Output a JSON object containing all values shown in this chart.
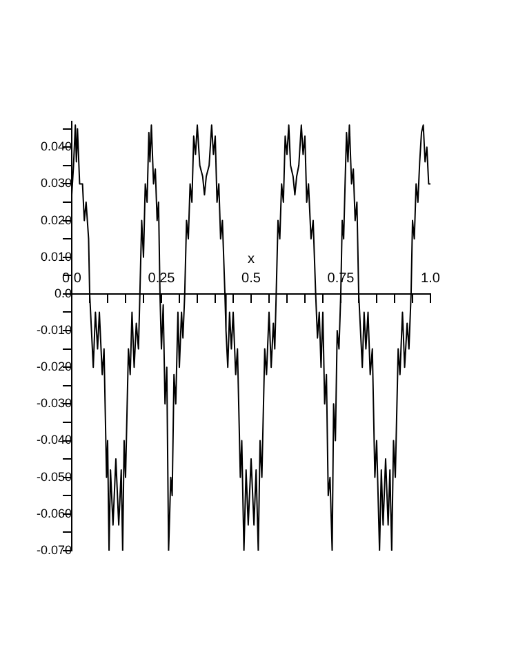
{
  "chart_data": {
    "type": "line",
    "xlabel": "x",
    "color": "#000000",
    "grid": false,
    "legend": false,
    "marker": "none",
    "line_style": "solid",
    "xlim": [
      0,
      1.0
    ],
    "ylim": [
      -0.07,
      0.047
    ],
    "xticks": [
      {
        "value": 0,
        "label": "0.0"
      },
      {
        "value": 0.05,
        "label": null
      },
      {
        "value": 0.1,
        "label": null
      },
      {
        "value": 0.15,
        "label": null
      },
      {
        "value": 0.2,
        "label": null
      },
      0.25,
      {
        "value": 0.3,
        "label": null
      },
      {
        "value": 0.35,
        "label": null
      },
      {
        "value": 0.4,
        "label": null
      },
      {
        "value": 0.45,
        "label": null
      },
      0.5,
      {
        "value": 0.55,
        "label": null
      },
      {
        "value": 0.6,
        "label": null
      },
      {
        "value": 0.65,
        "label": null
      },
      {
        "value": 0.7,
        "label": null
      },
      0.75,
      {
        "value": 0.8,
        "label": null
      },
      {
        "value": 0.85,
        "label": null
      },
      {
        "value": 0.9,
        "label": null
      },
      {
        "value": 0.95,
        "label": null
      },
      {
        "value": 1.0,
        "label": "1.0"
      }
    ],
    "yticks": [
      {
        "value": -0.07,
        "label": "-0.070"
      },
      {
        "value": -0.065,
        "label": null
      },
      {
        "value": -0.06,
        "label": "-0.060"
      },
      {
        "value": -0.055,
        "label": null
      },
      {
        "value": -0.05,
        "label": "-0.050"
      },
      {
        "value": -0.045,
        "label": null
      },
      {
        "value": -0.04,
        "label": "-0.040"
      },
      {
        "value": -0.035,
        "label": null
      },
      {
        "value": -0.03,
        "label": "-0.030"
      },
      {
        "value": -0.025,
        "label": null
      },
      {
        "value": -0.02,
        "label": "-0.020"
      },
      {
        "value": -0.015,
        "label": null
      },
      {
        "value": -0.01,
        "label": "-0.010"
      },
      {
        "value": -0.005,
        "label": null
      },
      {
        "value": 0,
        "label": "0.0"
      },
      {
        "value": 0.005,
        "label": null
      },
      {
        "value": 0.01,
        "label": "0.010"
      },
      {
        "value": 0.015,
        "label": null
      },
      {
        "value": 0.02,
        "label": "0.020"
      },
      {
        "value": 0.025,
        "label": null
      },
      {
        "value": 0.03,
        "label": "0.030"
      },
      {
        "value": 0.035,
        "label": null
      },
      {
        "value": 0.04,
        "label": "0.040"
      },
      {
        "value": 0.045,
        "label": null
      }
    ],
    "x": [
      0,
      0.005,
      0.01,
      0.013,
      0.016,
      0.022,
      0.03,
      0.035,
      0.04,
      0.047,
      0.05,
      0.055,
      0.06,
      0.066,
      0.072,
      0.077,
      0.085,
      0.09,
      0.097,
      0.1,
      0.104,
      0.108,
      0.115,
      0.123,
      0.131,
      0.138,
      0.142,
      0.146,
      0.15,
      0.158,
      0.163,
      0.168,
      0.174,
      0.18,
      0.186,
      0.19,
      0.195,
      0.2,
      0.205,
      0.21,
      0.215,
      0.218,
      0.222,
      0.228,
      0.233,
      0.238,
      0.242,
      0.246,
      0.25,
      0.255,
      0.26,
      0.265,
      0.27,
      0.276,
      0.28,
      0.285,
      0.29,
      0.296,
      0.3,
      0.306,
      0.31,
      0.315,
      0.32,
      0.325,
      0.33,
      0.335,
      0.34,
      0.345,
      0.35,
      0.357,
      0.365,
      0.37,
      0.375,
      0.383,
      0.39,
      0.395,
      0.4,
      0.405,
      0.41,
      0.415,
      0.42,
      0.427,
      0.43,
      0.435,
      0.44,
      0.445,
      0.45,
      0.457,
      0.462,
      0.47,
      0.474,
      0.48,
      0.486,
      0.492,
      0.5,
      0.508,
      0.514,
      0.52,
      0.525,
      0.53,
      0.538,
      0.543,
      0.55,
      0.556,
      0.562,
      0.566,
      0.57,
      0.575,
      0.58,
      0.585,
      0.59,
      0.595,
      0.6,
      0.605,
      0.61,
      0.617,
      0.622,
      0.627,
      0.633,
      0.64,
      0.645,
      0.65,
      0.655,
      0.66,
      0.667,
      0.673,
      0.68,
      0.685,
      0.69,
      0.695,
      0.7,
      0.705,
      0.71,
      0.715,
      0.72,
      0.726,
      0.73,
      0.735,
      0.74,
      0.745,
      0.75,
      0.754,
      0.758,
      0.762,
      0.766,
      0.77,
      0.774,
      0.78,
      0.785,
      0.79,
      0.795,
      0.8,
      0.805,
      0.81,
      0.815,
      0.82,
      0.826,
      0.832,
      0.838,
      0.845,
      0.85,
      0.858,
      0.863,
      0.868,
      0.875,
      0.882,
      0.887,
      0.892,
      0.897,
      0.902,
      0.91,
      0.915,
      0.922,
      0.928,
      0.935,
      0.94,
      0.946,
      0.95,
      0.955,
      0.96,
      0.965,
      0.97,
      0.975,
      0.98,
      0.985,
      0.99,
      0.995,
      1.0
    ],
    "values": [
      0.027,
      0.035,
      0.046,
      0.036,
      0.045,
      0.03,
      0.03,
      0.02,
      0.025,
      0.015,
      0,
      -0.01,
      -0.02,
      -0.005,
      -0.015,
      -0.005,
      -0.022,
      -0.015,
      -0.05,
      -0.04,
      -0.07,
      -0.048,
      -0.063,
      -0.045,
      -0.063,
      -0.048,
      -0.07,
      -0.04,
      -0.05,
      -0.015,
      -0.022,
      -0.005,
      -0.02,
      -0.008,
      -0.015,
      0,
      0.02,
      0.01,
      0.03,
      0.025,
      0.044,
      0.036,
      0.046,
      0.03,
      0.034,
      0.02,
      0.025,
      0,
      -0.015,
      -0.003,
      -0.03,
      -0.02,
      -0.07,
      -0.05,
      -0.055,
      -0.022,
      -0.03,
      -0.005,
      -0.02,
      -0.005,
      -0.012,
      0,
      0.02,
      0.015,
      0.03,
      0.025,
      0.043,
      0.038,
      0.046,
      0.035,
      0.032,
      0.027,
      0.032,
      0.035,
      0.046,
      0.038,
      0.043,
      0.025,
      0.03,
      0.015,
      0.02,
      0,
      -0.01,
      -0.02,
      -0.005,
      -0.015,
      -0.005,
      -0.022,
      -0.015,
      -0.05,
      -0.04,
      -0.07,
      -0.048,
      -0.063,
      -0.045,
      -0.063,
      -0.048,
      -0.07,
      -0.04,
      -0.05,
      -0.015,
      -0.022,
      -0.005,
      -0.02,
      -0.008,
      -0.015,
      0,
      0.02,
      0.015,
      0.03,
      0.025,
      0.043,
      0.038,
      0.046,
      0.035,
      0.032,
      0.027,
      0.032,
      0.035,
      0.046,
      0.038,
      0.043,
      0.025,
      0.03,
      0.015,
      0.02,
      0,
      -0.012,
      -0.005,
      -0.02,
      -0.005,
      -0.03,
      -0.022,
      -0.055,
      -0.05,
      -0.07,
      -0.03,
      -0.04,
      -0.01,
      -0.015,
      0,
      0.02,
      0.015,
      0.03,
      0.044,
      0.036,
      0.046,
      0.03,
      0.034,
      0.02,
      0.025,
      0,
      -0.01,
      -0.02,
      -0.005,
      -0.015,
      -0.005,
      -0.022,
      -0.015,
      -0.05,
      -0.04,
      -0.07,
      -0.048,
      -0.063,
      -0.045,
      -0.063,
      -0.048,
      -0.07,
      -0.04,
      -0.05,
      -0.015,
      -0.022,
      -0.005,
      -0.02,
      -0.008,
      -0.015,
      0,
      0.02,
      0.015,
      0.03,
      0.025,
      0.036,
      0.044,
      0.046,
      0.036,
      0.04,
      0.03,
      0.03
    ]
  }
}
